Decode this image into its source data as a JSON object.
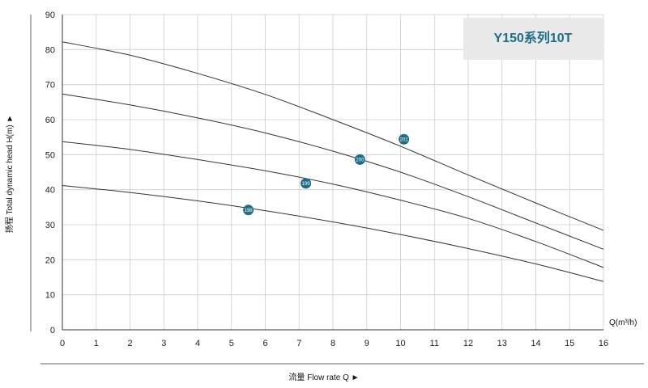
{
  "chart_data": {
    "type": "line",
    "title": "Y150系列10T",
    "xlabel": "流量 Flow rate Q ►",
    "ylabel": "扬程  Total dynamic head H(m) ►",
    "x_unit_label": "Q(m³/h)",
    "xlim": [
      0,
      16
    ],
    "ylim": [
      0,
      90
    ],
    "x_ticks": [
      "0",
      "1",
      "2",
      "3",
      "4",
      "5",
      "6",
      "7",
      "8",
      "9",
      "10",
      "11",
      "12",
      "13",
      "14",
      "15",
      "16"
    ],
    "y_ticks": [
      "0",
      "10",
      "20",
      "30",
      "40",
      "50",
      "60",
      "70",
      "80",
      "90"
    ],
    "grid": true,
    "accent_color": "#1d6e8a",
    "badge_bg": "#e9e9e9",
    "x": [
      0,
      2,
      4,
      6,
      8,
      10,
      12,
      14,
      16
    ],
    "series": [
      {
        "name": "198",
        "values": [
          41.2,
          39.2,
          36.8,
          34.0,
          30.8,
          27.2,
          23.2,
          18.8,
          13.8
        ],
        "marker_x": 5.5,
        "marker_y": 34.2
      },
      {
        "name": "199",
        "values": [
          53.7,
          51.5,
          48.6,
          45.4,
          41.6,
          37.0,
          31.8,
          25.2,
          17.8
        ],
        "marker_x": 7.2,
        "marker_y": 41.8
      },
      {
        "name": "200",
        "values": [
          67.3,
          64.2,
          60.5,
          56.2,
          51.0,
          45.0,
          38.0,
          30.5,
          23.0
        ],
        "marker_x": 8.8,
        "marker_y": 48.6
      },
      {
        "name": "201",
        "values": [
          82.2,
          78.4,
          73.2,
          67.2,
          60.0,
          52.4,
          44.2,
          36.2,
          28.4
        ],
        "marker_x": 10.1,
        "marker_y": 54.4
      }
    ]
  }
}
